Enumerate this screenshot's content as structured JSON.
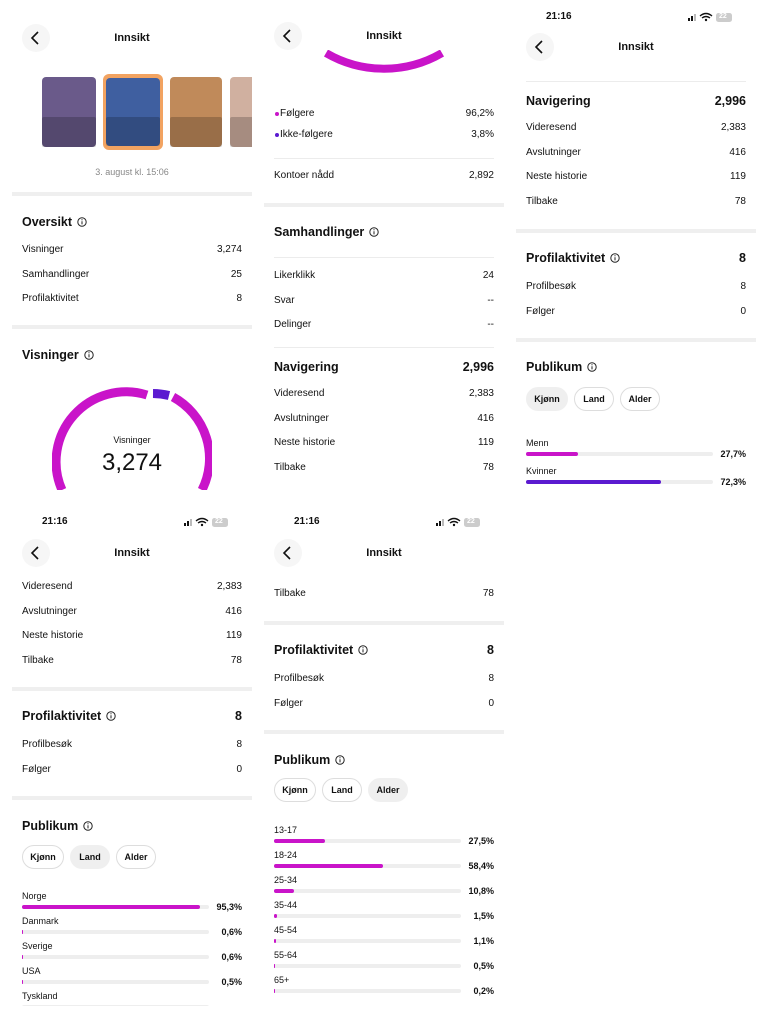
{
  "panel1": {
    "title": "Innsikt",
    "date": "3. august kl. 15:06",
    "overview": {
      "title": "Oversikt",
      "rows": [
        [
          "Visninger",
          "3,274"
        ],
        [
          "Samhandlinger",
          "25"
        ],
        [
          "Profilaktivitet",
          "8"
        ]
      ]
    },
    "views": {
      "title": "Visninger",
      "center_label": "Visninger",
      "center_value": "3,274"
    }
  },
  "panel2": {
    "title": "Innsikt",
    "followers": [
      [
        "Følgere",
        "96,2%"
      ],
      [
        "Ikke-følgere",
        "3,8%"
      ]
    ],
    "reached": [
      "Kontoer nådd",
      "2,892"
    ],
    "interactions": {
      "title": "Samhandlinger",
      "rows": [
        [
          "Likerklikk",
          "24"
        ],
        [
          "Svar",
          "--"
        ],
        [
          "Delinger",
          "--"
        ]
      ]
    },
    "navigation": {
      "title": "Navigering",
      "total": "2,996",
      "rows": [
        [
          "Videresend",
          "2,383"
        ],
        [
          "Avslutninger",
          "416"
        ],
        [
          "Neste historie",
          "119"
        ],
        [
          "Tilbake",
          "78"
        ]
      ]
    }
  },
  "panel3": {
    "status": {
      "time": "21:16",
      "battery": "22"
    },
    "title": "Innsikt",
    "navigation": {
      "title": "Navigering",
      "total": "2,996",
      "rows": [
        [
          "Videresend",
          "2,383"
        ],
        [
          "Avslutninger",
          "416"
        ],
        [
          "Neste historie",
          "119"
        ],
        [
          "Tilbake",
          "78"
        ]
      ]
    },
    "profile": {
      "title": "Profilaktivitet",
      "total": "8",
      "rows": [
        [
          "Profilbesøk",
          "8"
        ],
        [
          "Følger",
          "0"
        ]
      ]
    },
    "audience": {
      "title": "Publikum",
      "tabs": [
        "Kjønn",
        "Land",
        "Alder"
      ],
      "selected_tab": 0,
      "bars": [
        {
          "label": "Menn",
          "value": 27.7,
          "value_label": "27,7%",
          "color": "#c914c9"
        },
        {
          "label": "Kvinner",
          "value": 72.3,
          "value_label": "72,3%",
          "color": "#5b1ad0"
        }
      ]
    }
  },
  "panel4": {
    "status": {
      "time": "21:16",
      "battery": "22"
    },
    "title": "Innsikt",
    "rows": [
      [
        "Videresend",
        "2,383"
      ],
      [
        "Avslutninger",
        "416"
      ],
      [
        "Neste historie",
        "119"
      ],
      [
        "Tilbake",
        "78"
      ]
    ],
    "profile": {
      "title": "Profilaktivitet",
      "total": "8",
      "rows": [
        [
          "Profilbesøk",
          "8"
        ],
        [
          "Følger",
          "0"
        ]
      ]
    },
    "audience": {
      "title": "Publikum",
      "tabs": [
        "Kjønn",
        "Land",
        "Alder"
      ],
      "selected_tab": 1,
      "bars": [
        {
          "label": "Norge",
          "value": 95.3,
          "value_label": "95,3%",
          "color": "#c914c9"
        },
        {
          "label": "Danmark",
          "value": 0.6,
          "value_label": "0,6%",
          "color": "#c914c9"
        },
        {
          "label": "Sverige",
          "value": 0.6,
          "value_label": "0,6%",
          "color": "#c914c9"
        },
        {
          "label": "USA",
          "value": 0.5,
          "value_label": "0,5%",
          "color": "#c914c9"
        },
        {
          "label": "Tyskland"
        }
      ]
    }
  },
  "panel5": {
    "status": {
      "time": "21:16",
      "battery": "22"
    },
    "title": "Innsikt",
    "rows": [
      [
        "Tilbake",
        "78"
      ]
    ],
    "profile": {
      "title": "Profilaktivitet",
      "total": "8",
      "rows": [
        [
          "Profilbesøk",
          "8"
        ],
        [
          "Følger",
          "0"
        ]
      ]
    },
    "audience": {
      "title": "Publikum",
      "tabs": [
        "Kjønn",
        "Land",
        "Alder"
      ],
      "selected_tab": 2,
      "bars": [
        {
          "label": "13-17",
          "value": 27.5,
          "value_label": "27,5%",
          "color": "#c914c9"
        },
        {
          "label": "18-24",
          "value": 58.4,
          "value_label": "58,4%",
          "color": "#c914c9"
        },
        {
          "label": "25-34",
          "value": 10.8,
          "value_label": "10,8%",
          "color": "#c914c9"
        },
        {
          "label": "35-44",
          "value": 1.5,
          "value_label": "1,5%",
          "color": "#c914c9"
        },
        {
          "label": "45-54",
          "value": 1.1,
          "value_label": "1,1%",
          "color": "#c914c9"
        },
        {
          "label": "55-64",
          "value": 0.5,
          "value_label": "0,5%",
          "color": "#c914c9"
        },
        {
          "label": "65+",
          "value": 0.2,
          "value_label": "0,2%",
          "color": "#c914c9"
        }
      ]
    }
  }
}
